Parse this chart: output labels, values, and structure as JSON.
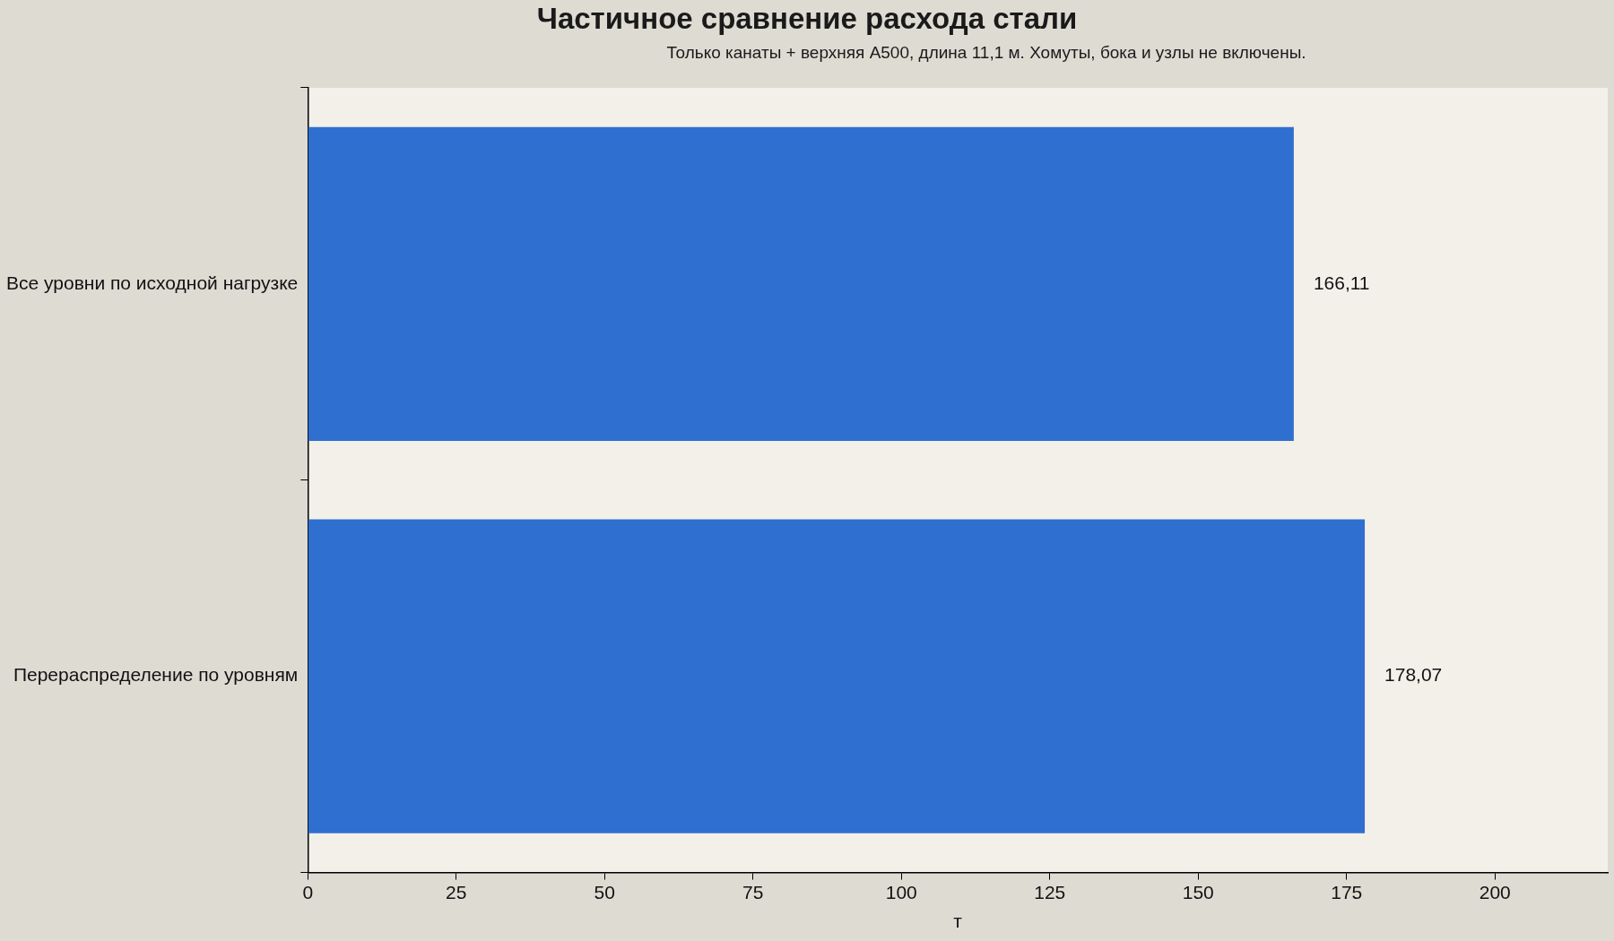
{
  "chart_data": {
    "type": "bar",
    "orientation": "horizontal",
    "title": "Частичное сравнение расхода стали",
    "subtitle": "Только канаты + верхняя A500, длина 11,1 м. Хомуты, бока и узлы не включены.",
    "xlabel": "т",
    "categories": [
      "Все уровни по исходной нагрузке",
      "Перераспределение по уровням"
    ],
    "values": [
      166.11,
      178.07
    ],
    "color": "#2e6fd0",
    "value_labels": [
      "166,11",
      "178,07"
    ],
    "xlim": [
      0,
      219
    ],
    "xticks": [
      0,
      25,
      50,
      75,
      100,
      125,
      150,
      175,
      200
    ],
    "grid": false,
    "legend": false
  }
}
